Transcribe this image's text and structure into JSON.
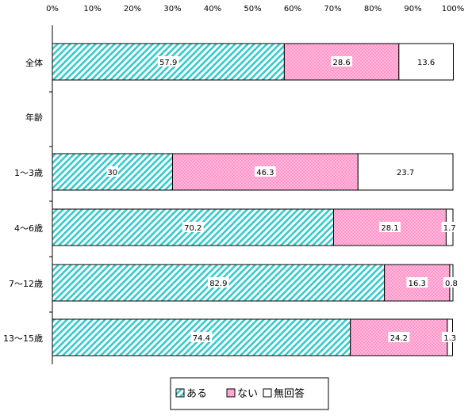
{
  "chart_data": {
    "type": "bar",
    "orientation": "horizontal",
    "stacked": true,
    "percent": true,
    "xlim": [
      0,
      100
    ],
    "xticks": [
      "0%",
      "10%",
      "20%",
      "30%",
      "40%",
      "50%",
      "60%",
      "70%",
      "80%",
      "90%",
      "100%"
    ],
    "categories": [
      "全体",
      "年齢",
      "1～3歳",
      "4～6歳",
      "7～12歳",
      "13～15歳"
    ],
    "series": [
      {
        "name": "ある",
        "color": "#33cccc",
        "pattern": "diagonal-stripes",
        "values": [
          57.9,
          null,
          30,
          70.2,
          82.9,
          74.4
        ],
        "labels": [
          "57.9",
          "",
          "30",
          "70.2",
          "82.9",
          "74.4"
        ]
      },
      {
        "name": "ない",
        "color": "#ff99cc",
        "pattern": "dots",
        "values": [
          28.6,
          null,
          46.3,
          28.1,
          16.3,
          24.2
        ],
        "labels": [
          "28.6",
          "",
          "46.3",
          "28.1",
          "16.3",
          "24.2"
        ]
      },
      {
        "name": "無回答",
        "color": "#ffffff",
        "pattern": "solid",
        "values": [
          13.6,
          null,
          23.7,
          1.7,
          0.8,
          1.3
        ],
        "labels": [
          "13.6",
          "",
          "23.7",
          "1.7",
          "0.8",
          "1.3"
        ]
      }
    ],
    "legend_position": "bottom",
    "grid": false
  }
}
